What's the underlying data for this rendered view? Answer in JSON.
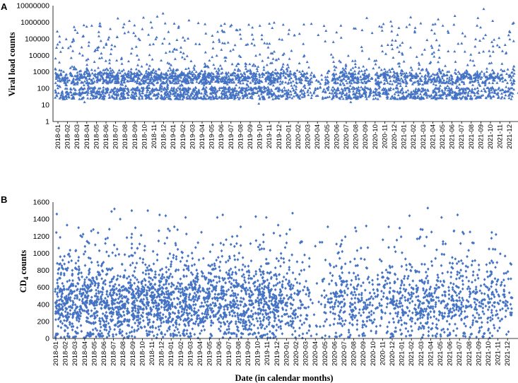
{
  "chart_data": [
    {
      "panel_label": "A",
      "type": "scatter",
      "marker": "triangle",
      "color": "#4472C4",
      "ylabel": "Viral load counts",
      "xlabel": "",
      "yscale": "log",
      "ylim": [
        1,
        10000000
      ],
      "yticks": [
        "1",
        "10",
        "100",
        "1000",
        "10000",
        "100000",
        "1000000",
        "10000000"
      ],
      "x_categories": [
        "2018-01",
        "2018-02",
        "2018-03",
        "2018-04",
        "2018-05",
        "2018-06",
        "2018-07",
        "2018-08",
        "2018-09",
        "2018-10",
        "2018-11",
        "2018-12",
        "2019-01",
        "2019-02",
        "2019-03",
        "2019-04",
        "2019-05",
        "2019-06",
        "2019-07",
        "2019-08",
        "2019-09",
        "2019-10",
        "2019-11",
        "2019-12",
        "2020-01",
        "2020-02",
        "2020-03",
        "2020-04",
        "2020-05",
        "2020-06",
        "2020-07",
        "2020-08",
        "2020-09",
        "2020-10",
        "2020-11",
        "2020-12",
        "2021-01",
        "2021-02",
        "2021-03",
        "2021-04",
        "2021-05",
        "2021-06",
        "2021-07",
        "2021-08",
        "2021-09",
        "2021-10",
        "2021-11",
        "2021-12"
      ],
      "grid": false,
      "monthly_density": [
        7,
        6,
        7,
        7,
        8,
        8,
        7,
        8,
        8,
        7,
        8,
        8,
        9,
        9,
        8,
        8,
        8,
        8,
        8,
        7,
        7,
        7,
        8,
        6,
        5,
        5,
        4,
        2,
        3,
        6,
        7,
        7,
        6,
        5,
        6,
        6,
        6,
        6,
        6,
        6,
        6,
        6,
        7,
        6,
        5,
        6,
        4,
        5
      ],
      "points": [
        [
          "2018-01-06",
          140000
        ],
        [
          "2018-01-25",
          640
        ],
        [
          "2018-02-19",
          95000
        ],
        [
          "2018-03-10",
          520
        ],
        [
          "2018-03-24",
          15
        ],
        [
          "2018-05-12",
          850000
        ],
        [
          "2018-06-20",
          35
        ],
        [
          "2018-07-08",
          1700000
        ],
        [
          "2018-08-14",
          1200000
        ],
        [
          "2018-09-03",
          150000
        ],
        [
          "2018-09-28",
          1900000
        ],
        [
          "2018-10-21",
          1000000
        ],
        [
          "2018-11-11",
          2200000
        ],
        [
          "2018-11-29",
          3400000
        ],
        [
          "2018-12-16",
          260000
        ],
        [
          "2019-02-20",
          1300000
        ],
        [
          "2019-04-05",
          500
        ],
        [
          "2019-06-18",
          700
        ],
        [
          "2019-09-28",
          12
        ],
        [
          "2019-11-10",
          450000
        ],
        [
          "2020-01-18",
          650
        ],
        [
          "2020-03-12",
          800000
        ],
        [
          "2020-05-04",
          100
        ],
        [
          "2020-07-15",
          15
        ],
        [
          "2020-09-05",
          1800000
        ],
        [
          "2020-11-20",
          1100000
        ],
        [
          "2021-01-22",
          2000000
        ],
        [
          "2021-04-18",
          1500000
        ],
        [
          "2021-06-10",
          2400000
        ],
        [
          "2021-08-22",
          1800000
        ],
        [
          "2021-09-10",
          6300000
        ],
        [
          "2021-10-08",
          1200000
        ],
        [
          "2021-12-02",
          250000
        ],
        [
          "2021-12-28",
          55
        ]
      ]
    },
    {
      "panel_label": "B",
      "type": "scatter",
      "marker": "diamond",
      "color": "#4472C4",
      "ylabel": "CD4 counts",
      "ylabel_main": "CD",
      "ylabel_subscript": "4",
      "ylabel_tail": " counts",
      "xlabel": "Date (in calendar months)",
      "ylim": [
        0,
        1600
      ],
      "yticks": [
        "0",
        "200",
        "400",
        "600",
        "800",
        "1000",
        "1200",
        "1400",
        "1600"
      ],
      "x_categories": [
        "2018-01",
        "2018-02",
        "2018-03",
        "2018-04",
        "2018-05",
        "2018-06",
        "2018-07",
        "2018-08",
        "2018-09",
        "2018-10",
        "2018-11",
        "2018-12",
        "2019-01",
        "2019-02",
        "2019-03",
        "2019-04",
        "2019-05",
        "2019-06",
        "2019-07",
        "2019-08",
        "2019-09",
        "2019-10",
        "2019-11",
        "2019-12",
        "2020-01",
        "2020-02",
        "2020-03",
        "2020-04",
        "2020-05",
        "2020-06",
        "2020-07",
        "2020-08",
        "2020-09",
        "2020-10",
        "2020-11",
        "2020-12",
        "2021-01",
        "2021-02",
        "2021-03",
        "2021-04",
        "2021-05",
        "2021-06",
        "2021-07",
        "2021-08",
        "2021-09",
        "2021-10",
        "2021-11",
        "2021-12"
      ],
      "grid": false,
      "monthly_density": [
        9,
        9,
        8,
        8,
        8,
        8,
        8,
        8,
        8,
        8,
        8,
        9,
        9,
        8,
        8,
        7,
        7,
        7,
        7,
        7,
        7,
        7,
        8,
        7,
        5,
        4,
        3,
        1,
        2,
        4,
        5,
        5,
        4,
        3,
        3,
        5,
        5,
        4,
        6,
        5,
        5,
        5,
        5,
        4,
        4,
        5,
        3,
        3
      ],
      "points": [
        [
          "2018-01-04",
          1460
        ],
        [
          "2018-02-06",
          1330
        ],
        [
          "2018-03-12",
          1300
        ],
        [
          "2018-06-25",
          1490
        ],
        [
          "2018-07-04",
          1520
        ],
        [
          "2018-07-22",
          1400
        ],
        [
          "2018-08-28",
          1500
        ],
        [
          "2018-10-18",
          1500
        ],
        [
          "2018-11-25",
          1450
        ],
        [
          "2018-12-14",
          1440
        ],
        [
          "2019-01-11",
          1310
        ],
        [
          "2019-02-16",
          1420
        ],
        [
          "2019-05-25",
          1420
        ],
        [
          "2019-06-12",
          1450
        ],
        [
          "2019-08-08",
          1310
        ],
        [
          "2019-09-25",
          1430
        ],
        [
          "2019-10-28",
          1420
        ],
        [
          "2019-12-05",
          1330
        ],
        [
          "2020-01-20",
          1470
        ],
        [
          "2020-05-10",
          1310
        ],
        [
          "2020-06-25",
          1020
        ],
        [
          "2020-09-10",
          1320
        ],
        [
          "2020-11-20",
          1310
        ],
        [
          "2021-01-25",
          1440
        ],
        [
          "2021-03-22",
          1530
        ],
        [
          "2021-05-05",
          1420
        ],
        [
          "2021-06-25",
          1450
        ],
        [
          "2021-10-25",
          1220
        ],
        [
          "2021-12-10",
          880
        ]
      ]
    }
  ]
}
